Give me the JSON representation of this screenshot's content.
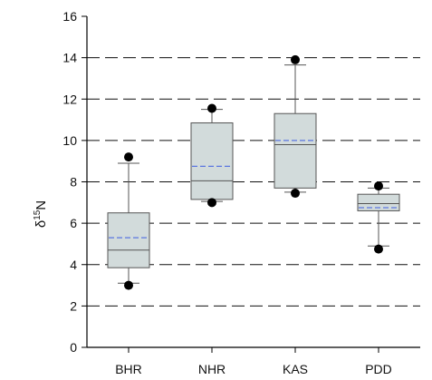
{
  "chart_data": {
    "type": "box",
    "title": "",
    "xlabel": "",
    "ylabel": {
      "prefix": "δ",
      "superscript": "15",
      "suffix": "N"
    },
    "ylim": [
      0,
      16
    ],
    "yticks": [
      0,
      2,
      4,
      6,
      8,
      10,
      12,
      14,
      16
    ],
    "grid": {
      "y": true,
      "style": "dashed"
    },
    "categories": [
      "BHR",
      "NHR",
      "KAS",
      "PDD"
    ],
    "boxes": [
      {
        "category": "BHR",
        "q1": 3.85,
        "median": 4.7,
        "q3": 6.5,
        "mean": 5.3,
        "whisker_low": 3.1,
        "whisker_high": 8.9,
        "outliers": [
          3.0,
          9.2
        ]
      },
      {
        "category": "NHR",
        "q1": 7.15,
        "median": 8.05,
        "q3": 10.85,
        "mean": 8.75,
        "whisker_low": 7.05,
        "whisker_high": 11.5,
        "outliers": [
          7.0,
          11.55
        ]
      },
      {
        "category": "KAS",
        "q1": 7.7,
        "median": 9.8,
        "q3": 11.3,
        "mean": 10.0,
        "whisker_low": 7.5,
        "whisker_high": 13.65,
        "outliers": [
          7.45,
          13.9
        ]
      },
      {
        "category": "PDD",
        "q1": 6.6,
        "median": 6.95,
        "q3": 7.4,
        "mean": 6.75,
        "whisker_low": 4.9,
        "whisker_high": 7.7,
        "outliers": [
          4.75,
          7.8
        ]
      }
    ],
    "colors": {
      "box_fill": "#d2dbdb",
      "box_stroke": "#555555",
      "median": "#555555",
      "mean": "#5b76e0",
      "grid": "#111111",
      "outlier": "#000000"
    }
  }
}
